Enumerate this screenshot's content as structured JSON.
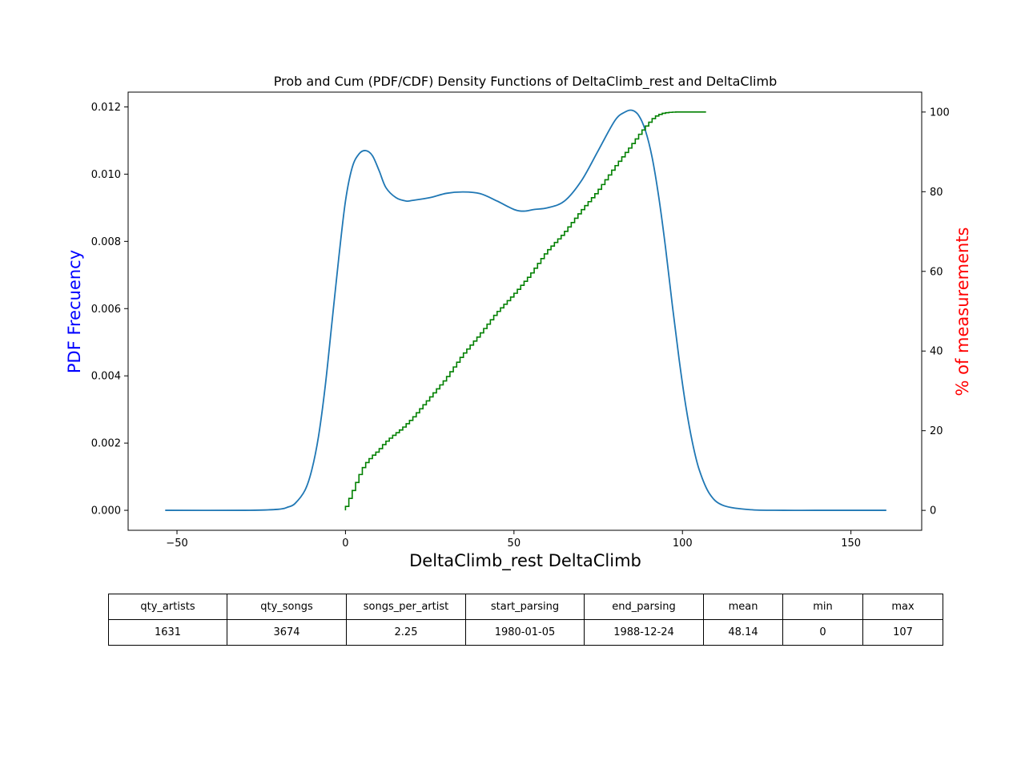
{
  "chart_data": {
    "type": "line",
    "title": "Prob and Cum (PDF/CDF) Density Functions of DeltaClimb_rest and DeltaClimb",
    "xlabel": "DeltaClimb_rest DeltaClimb",
    "ylabel_left": "PDF Frecuency",
    "ylabel_right": "% of measurements",
    "xlim": [
      -64.5,
      171
    ],
    "ylim_left": [
      -0.000594,
      0.01244
    ],
    "ylim_right": [
      -5,
      105
    ],
    "xticks": [
      -50,
      0,
      50,
      100,
      150
    ],
    "xtick_labels": [
      "−50",
      "0",
      "50",
      "100",
      "150"
    ],
    "yticks_left": [
      0,
      0.002,
      0.004,
      0.006,
      0.008,
      0.01,
      0.012
    ],
    "ytick_labels_left": [
      "0.000",
      "0.002",
      "0.004",
      "0.006",
      "0.008",
      "0.010",
      "0.012"
    ],
    "yticks_right": [
      0,
      20,
      40,
      60,
      80,
      100
    ],
    "ytick_labels_right": [
      "0",
      "20",
      "40",
      "60",
      "80",
      "100"
    ],
    "grid": false,
    "series": [
      {
        "axis": "left",
        "color": "#1f77b4",
        "x": [
          -53.5,
          -30,
          -20,
          -17,
          -15,
          -12,
          -10,
          -8,
          -6,
          -4,
          -2,
          0,
          2,
          4,
          6,
          8,
          10,
          12,
          15,
          18,
          20,
          25,
          30,
          35,
          40,
          45,
          50,
          53,
          56,
          60,
          65,
          70,
          75,
          80,
          83,
          85,
          87,
          89,
          91,
          93,
          95,
          97,
          99,
          101,
          103,
          105,
          108,
          112,
          120,
          130,
          140,
          160.5
        ],
        "y": [
          0,
          0,
          3e-05,
          0.0001,
          0.0002,
          0.0006,
          0.0012,
          0.0022,
          0.0037,
          0.0056,
          0.0075,
          0.0092,
          0.0102,
          0.0106,
          0.0107,
          0.01055,
          0.0101,
          0.0096,
          0.0093,
          0.0092,
          0.00922,
          0.0093,
          0.00943,
          0.00947,
          0.00942,
          0.0092,
          0.00895,
          0.0089,
          0.00895,
          0.009,
          0.0092,
          0.0098,
          0.0107,
          0.0116,
          0.01185,
          0.0119,
          0.01175,
          0.0113,
          0.0105,
          0.0093,
          0.0078,
          0.0061,
          0.0045,
          0.0031,
          0.002,
          0.0012,
          0.0005,
          0.00015,
          2e-05,
          0,
          0,
          0
        ]
      },
      {
        "axis": "right",
        "color": "#008000",
        "x": [
          0,
          1,
          2,
          3,
          4,
          5,
          6,
          7,
          8,
          10,
          12,
          14,
          17,
          20,
          25,
          30,
          35,
          40,
          45,
          50,
          55,
          60,
          65,
          70,
          75,
          80,
          85,
          88,
          90,
          92,
          94,
          96,
          98,
          100,
          104,
          107
        ],
        "y": [
          0,
          2,
          4,
          6,
          8,
          10,
          11.5,
          12.5,
          13.5,
          15,
          17,
          18.5,
          20.5,
          23,
          28,
          33,
          39,
          44,
          49.5,
          54,
          59,
          65,
          69.5,
          75,
          80,
          86,
          91.5,
          95,
          97,
          98.8,
          99.6,
          99.9,
          100,
          100,
          100,
          100
        ]
      }
    ]
  },
  "table": {
    "headers": [
      "qty_artists",
      "qty_songs",
      "songs_per_artist",
      "start_parsing",
      "end_parsing",
      "mean",
      "min",
      "max"
    ],
    "values": [
      "1631",
      "3674",
      "2.25",
      "1980-01-05",
      "1988-12-24",
      "48.14",
      "0",
      "107"
    ]
  }
}
